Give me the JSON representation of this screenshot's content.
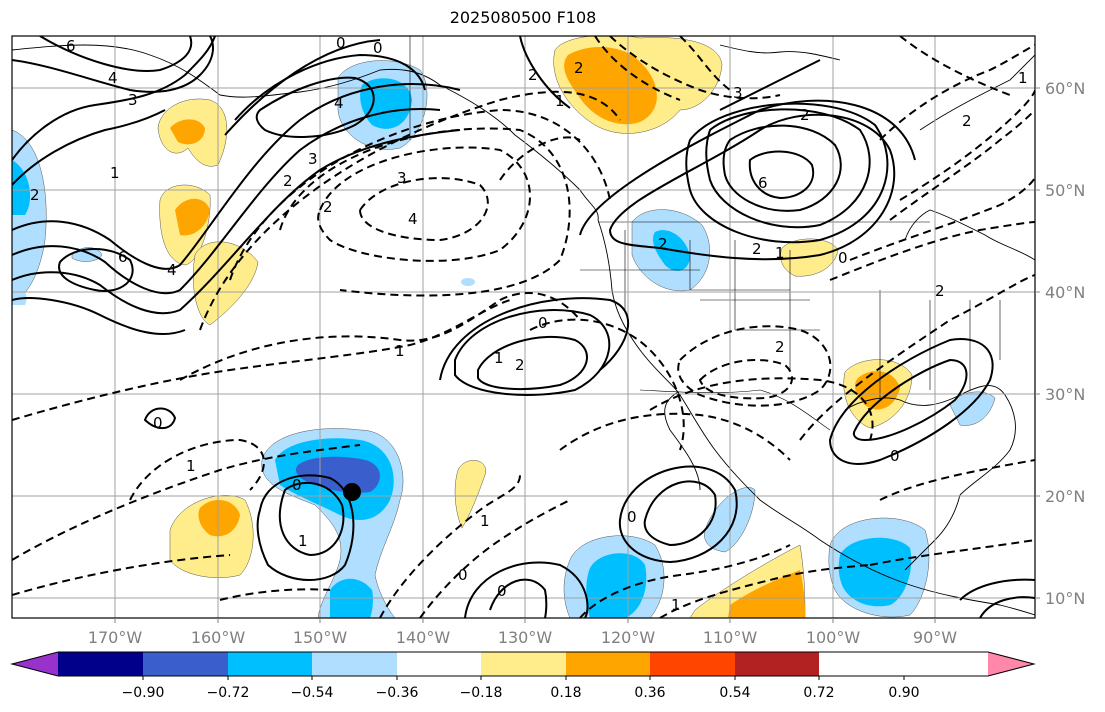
{
  "title": "2025080500 F108",
  "map": {
    "lon_labels": [
      "170°W",
      "160°W",
      "150°W",
      "140°W",
      "130°W",
      "120°W",
      "110°W",
      "100°W",
      "90°W"
    ],
    "lat_labels": [
      "60°N",
      "50°N",
      "40°N",
      "30°N",
      "20°N",
      "10°N"
    ],
    "marker": {
      "lon": -147.0,
      "lat": 20.2
    }
  },
  "colorbar": {
    "colors": [
      "#9932cc",
      "#00008b",
      "#3a5fcd",
      "#00bfff",
      "#afdeff",
      "#ffffff",
      "#ffec8b",
      "#ffa500",
      "#ff4500",
      "#b22222",
      "#ff88aa"
    ],
    "tick_labels": [
      "−0.90",
      "−0.72",
      "−0.54",
      "−0.36",
      "−0.18",
      "0.18",
      "0.36",
      "0.54",
      "0.72",
      "0.90"
    ]
  },
  "contour_labels": [
    "6",
    "4",
    "3",
    "0",
    "0",
    "4",
    "3",
    "2",
    "1",
    "2",
    "2",
    "3",
    "4",
    "6",
    "4",
    "2",
    "2",
    "3",
    "2",
    "1",
    "2",
    "1",
    "2",
    "2",
    "1",
    "2",
    "0",
    "0",
    "1",
    "1",
    "0",
    "0",
    "1",
    "1",
    "0",
    "0",
    "1",
    "0",
    "2",
    "1",
    "2",
    "6",
    "0"
  ]
}
